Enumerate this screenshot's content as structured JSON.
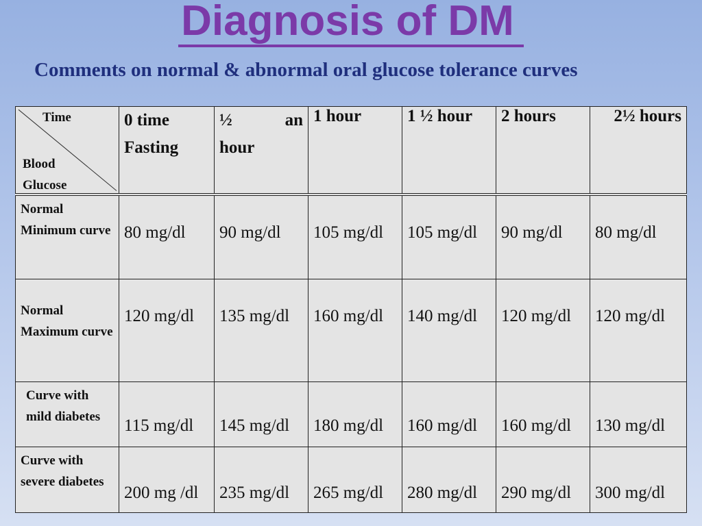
{
  "title": "Diagnosis of DM",
  "subtitle": "Comments on normal & abnormal oral glucose tolerance curves",
  "table": {
    "corner": {
      "top": "Time",
      "bottom": "Blood Glucose"
    },
    "headers": [
      {
        "line1": "0 time",
        "line2": "Fasting"
      },
      {
        "line1a": "½",
        "line1b": "an",
        "line2": "hour"
      },
      {
        "line1": "1 hour"
      },
      {
        "line1": "1 ½  hour"
      },
      {
        "line1": "2 hours"
      },
      {
        "line1": "2½ hours"
      }
    ],
    "rows": [
      {
        "label": "Normal Minimum curve",
        "values": [
          "80 mg/dl",
          "90 mg/dl",
          "105 mg/dl",
          "105 mg/dl",
          "90 mg/dl",
          "80 mg/dl"
        ]
      },
      {
        "label": "Normal Maximum curve",
        "values": [
          "120 mg/dl",
          "135 mg/dl",
          "160 mg/dl",
          "140 mg/dl",
          "120 mg/dl",
          "120 mg/dl"
        ]
      },
      {
        "label": "Curve with mild diabetes",
        "values": [
          "115 mg/dl",
          "145 mg/dl",
          "180 mg/dl",
          "160 mg/dl",
          "160 mg/dl",
          "130 mg/dl"
        ]
      },
      {
        "label": "Curve with severe diabetes",
        "values": [
          "200 mg /dl",
          "235 mg/dl",
          "265 mg/dl",
          "280 mg/dl",
          "290 mg/dl",
          "300 mg/dl"
        ]
      }
    ]
  },
  "colors": {
    "title": "#7b3aa8",
    "subtitle": "#1f2f7d",
    "cell_background": "#e4e4e4"
  }
}
